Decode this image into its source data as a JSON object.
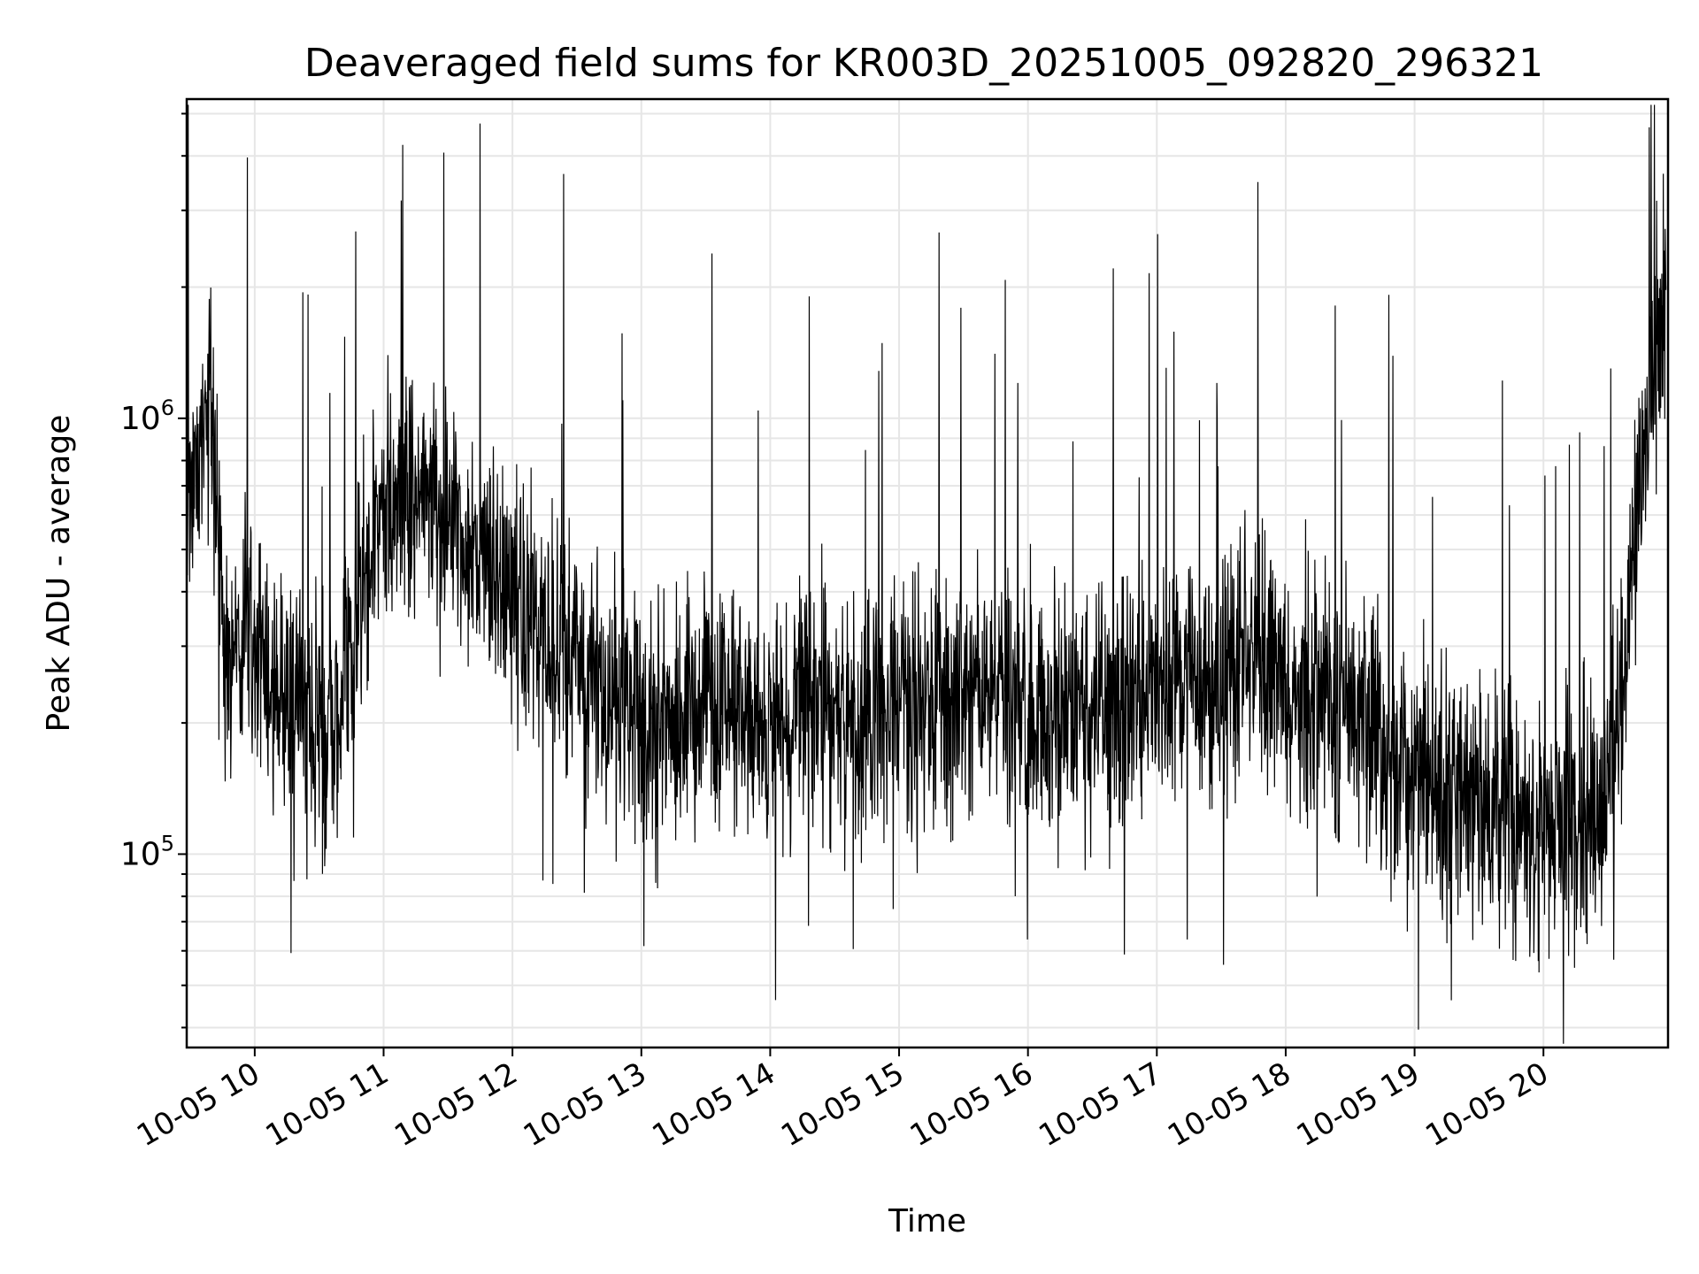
{
  "chart_data": {
    "type": "line",
    "title": "Deaveraged field sums for KR003D_20251005_092820_296321",
    "xlabel": "Time",
    "ylabel": "Peak ADU - average",
    "yscale": "log",
    "ylim": [
      36000,
      5400000
    ],
    "xlim": [
      "2025-10-05 09:28:20",
      "2025-10-05 20:58:00"
    ],
    "grid": true,
    "line_color": "#000000",
    "x_ticks": [
      {
        "value": "2025-10-05 10:00",
        "label": "10-05 10"
      },
      {
        "value": "2025-10-05 11:00",
        "label": "10-05 11"
      },
      {
        "value": "2025-10-05 12:00",
        "label": "10-05 12"
      },
      {
        "value": "2025-10-05 13:00",
        "label": "10-05 13"
      },
      {
        "value": "2025-10-05 14:00",
        "label": "10-05 14"
      },
      {
        "value": "2025-10-05 15:00",
        "label": "10-05 15"
      },
      {
        "value": "2025-10-05 16:00",
        "label": "10-05 16"
      },
      {
        "value": "2025-10-05 17:00",
        "label": "10-05 17"
      },
      {
        "value": "2025-10-05 18:00",
        "label": "10-05 18"
      },
      {
        "value": "2025-10-05 19:00",
        "label": "10-05 19"
      },
      {
        "value": "2025-10-05 20:00",
        "label": "10-05 20"
      }
    ],
    "y_ticks": [
      {
        "value": 100000,
        "base": "10",
        "exp": "5"
      },
      {
        "value": 1000000,
        "base": "10",
        "exp": "6"
      }
    ],
    "series": [
      {
        "x": [
          "2025-10-05 09:30",
          "2025-10-05 09:35",
          "2025-10-05 09:40",
          "2025-10-05 09:45",
          "2025-10-05 09:50",
          "2025-10-05 09:55",
          "2025-10-05 10:00",
          "2025-10-05 10:10",
          "2025-10-05 10:20",
          "2025-10-05 10:30",
          "2025-10-05 10:40",
          "2025-10-05 10:50",
          "2025-10-05 11:00",
          "2025-10-05 11:10",
          "2025-10-05 11:20",
          "2025-10-05 11:30",
          "2025-10-05 11:40",
          "2025-10-05 11:50",
          "2025-10-05 12:00",
          "2025-10-05 12:10",
          "2025-10-05 12:20",
          "2025-10-05 12:30",
          "2025-10-05 12:40",
          "2025-10-05 12:50",
          "2025-10-05 13:00",
          "2025-10-05 13:15",
          "2025-10-05 13:30",
          "2025-10-05 13:45",
          "2025-10-05 14:00",
          "2025-10-05 14:15",
          "2025-10-05 14:30",
          "2025-10-05 14:45",
          "2025-10-05 15:00",
          "2025-10-05 15:15",
          "2025-10-05 15:30",
          "2025-10-05 15:45",
          "2025-10-05 16:00",
          "2025-10-05 16:15",
          "2025-10-05 16:30",
          "2025-10-05 16:45",
          "2025-10-05 17:00",
          "2025-10-05 17:15",
          "2025-10-05 17:30",
          "2025-10-05 17:45",
          "2025-10-05 18:00",
          "2025-10-05 18:15",
          "2025-10-05 18:30",
          "2025-10-05 18:45",
          "2025-10-05 19:00",
          "2025-10-05 19:15",
          "2025-10-05 19:30",
          "2025-10-05 19:45",
          "2025-10-05 20:00",
          "2025-10-05 20:15",
          "2025-10-05 20:30",
          "2025-10-05 20:40",
          "2025-10-05 20:50",
          "2025-10-05 20:57"
        ],
        "values": [
          600000,
          900000,
          1100000,
          300000,
          300000,
          350000,
          300000,
          260000,
          230000,
          190000,
          220000,
          450000,
          600000,
          700000,
          650000,
          600000,
          500000,
          450000,
          380000,
          350000,
          300000,
          280000,
          230000,
          220000,
          200000,
          210000,
          220000,
          230000,
          200000,
          230000,
          220000,
          200000,
          220000,
          240000,
          230000,
          230000,
          220000,
          220000,
          210000,
          220000,
          230000,
          230000,
          240000,
          300000,
          240000,
          230000,
          210000,
          180000,
          150000,
          140000,
          130000,
          125000,
          120000,
          120000,
          130000,
          400000,
          1200000,
          1700000
        ]
      }
    ]
  }
}
